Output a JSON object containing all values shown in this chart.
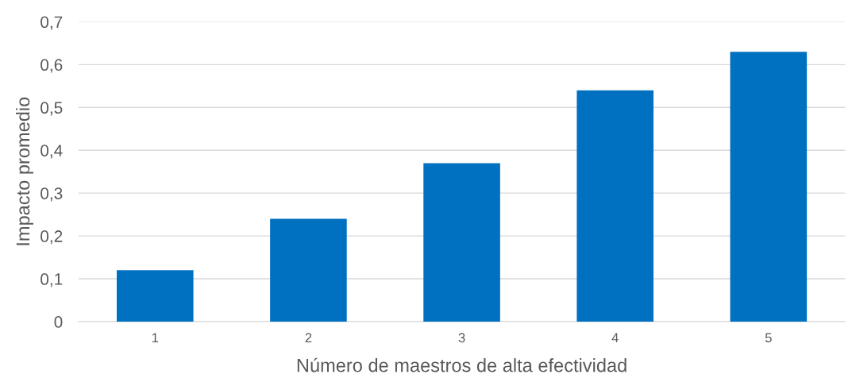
{
  "chart_data": {
    "type": "bar",
    "xlabel": "Número de maestros de alta efectividad",
    "ylabel": "Impacto promedio",
    "categories": [
      "1",
      "2",
      "3",
      "4",
      "5"
    ],
    "values": [
      0.12,
      0.24,
      0.37,
      0.54,
      0.63
    ],
    "color": "#0070c0",
    "ylim": [
      0,
      0.7
    ],
    "yticks": [
      0,
      {
        "value": 0.1,
        "label": "0,1"
      },
      {
        "value": 0.2,
        "label": "0,2"
      },
      {
        "value": 0.3,
        "label": "0,3"
      },
      {
        "value": 0.4,
        "label": "0,4"
      },
      {
        "value": 0.5,
        "label": "0,5"
      },
      {
        "value": 0.6,
        "label": "0,6"
      },
      {
        "value": 0.7,
        "label": "0,7"
      }
    ],
    "grid": "y"
  }
}
